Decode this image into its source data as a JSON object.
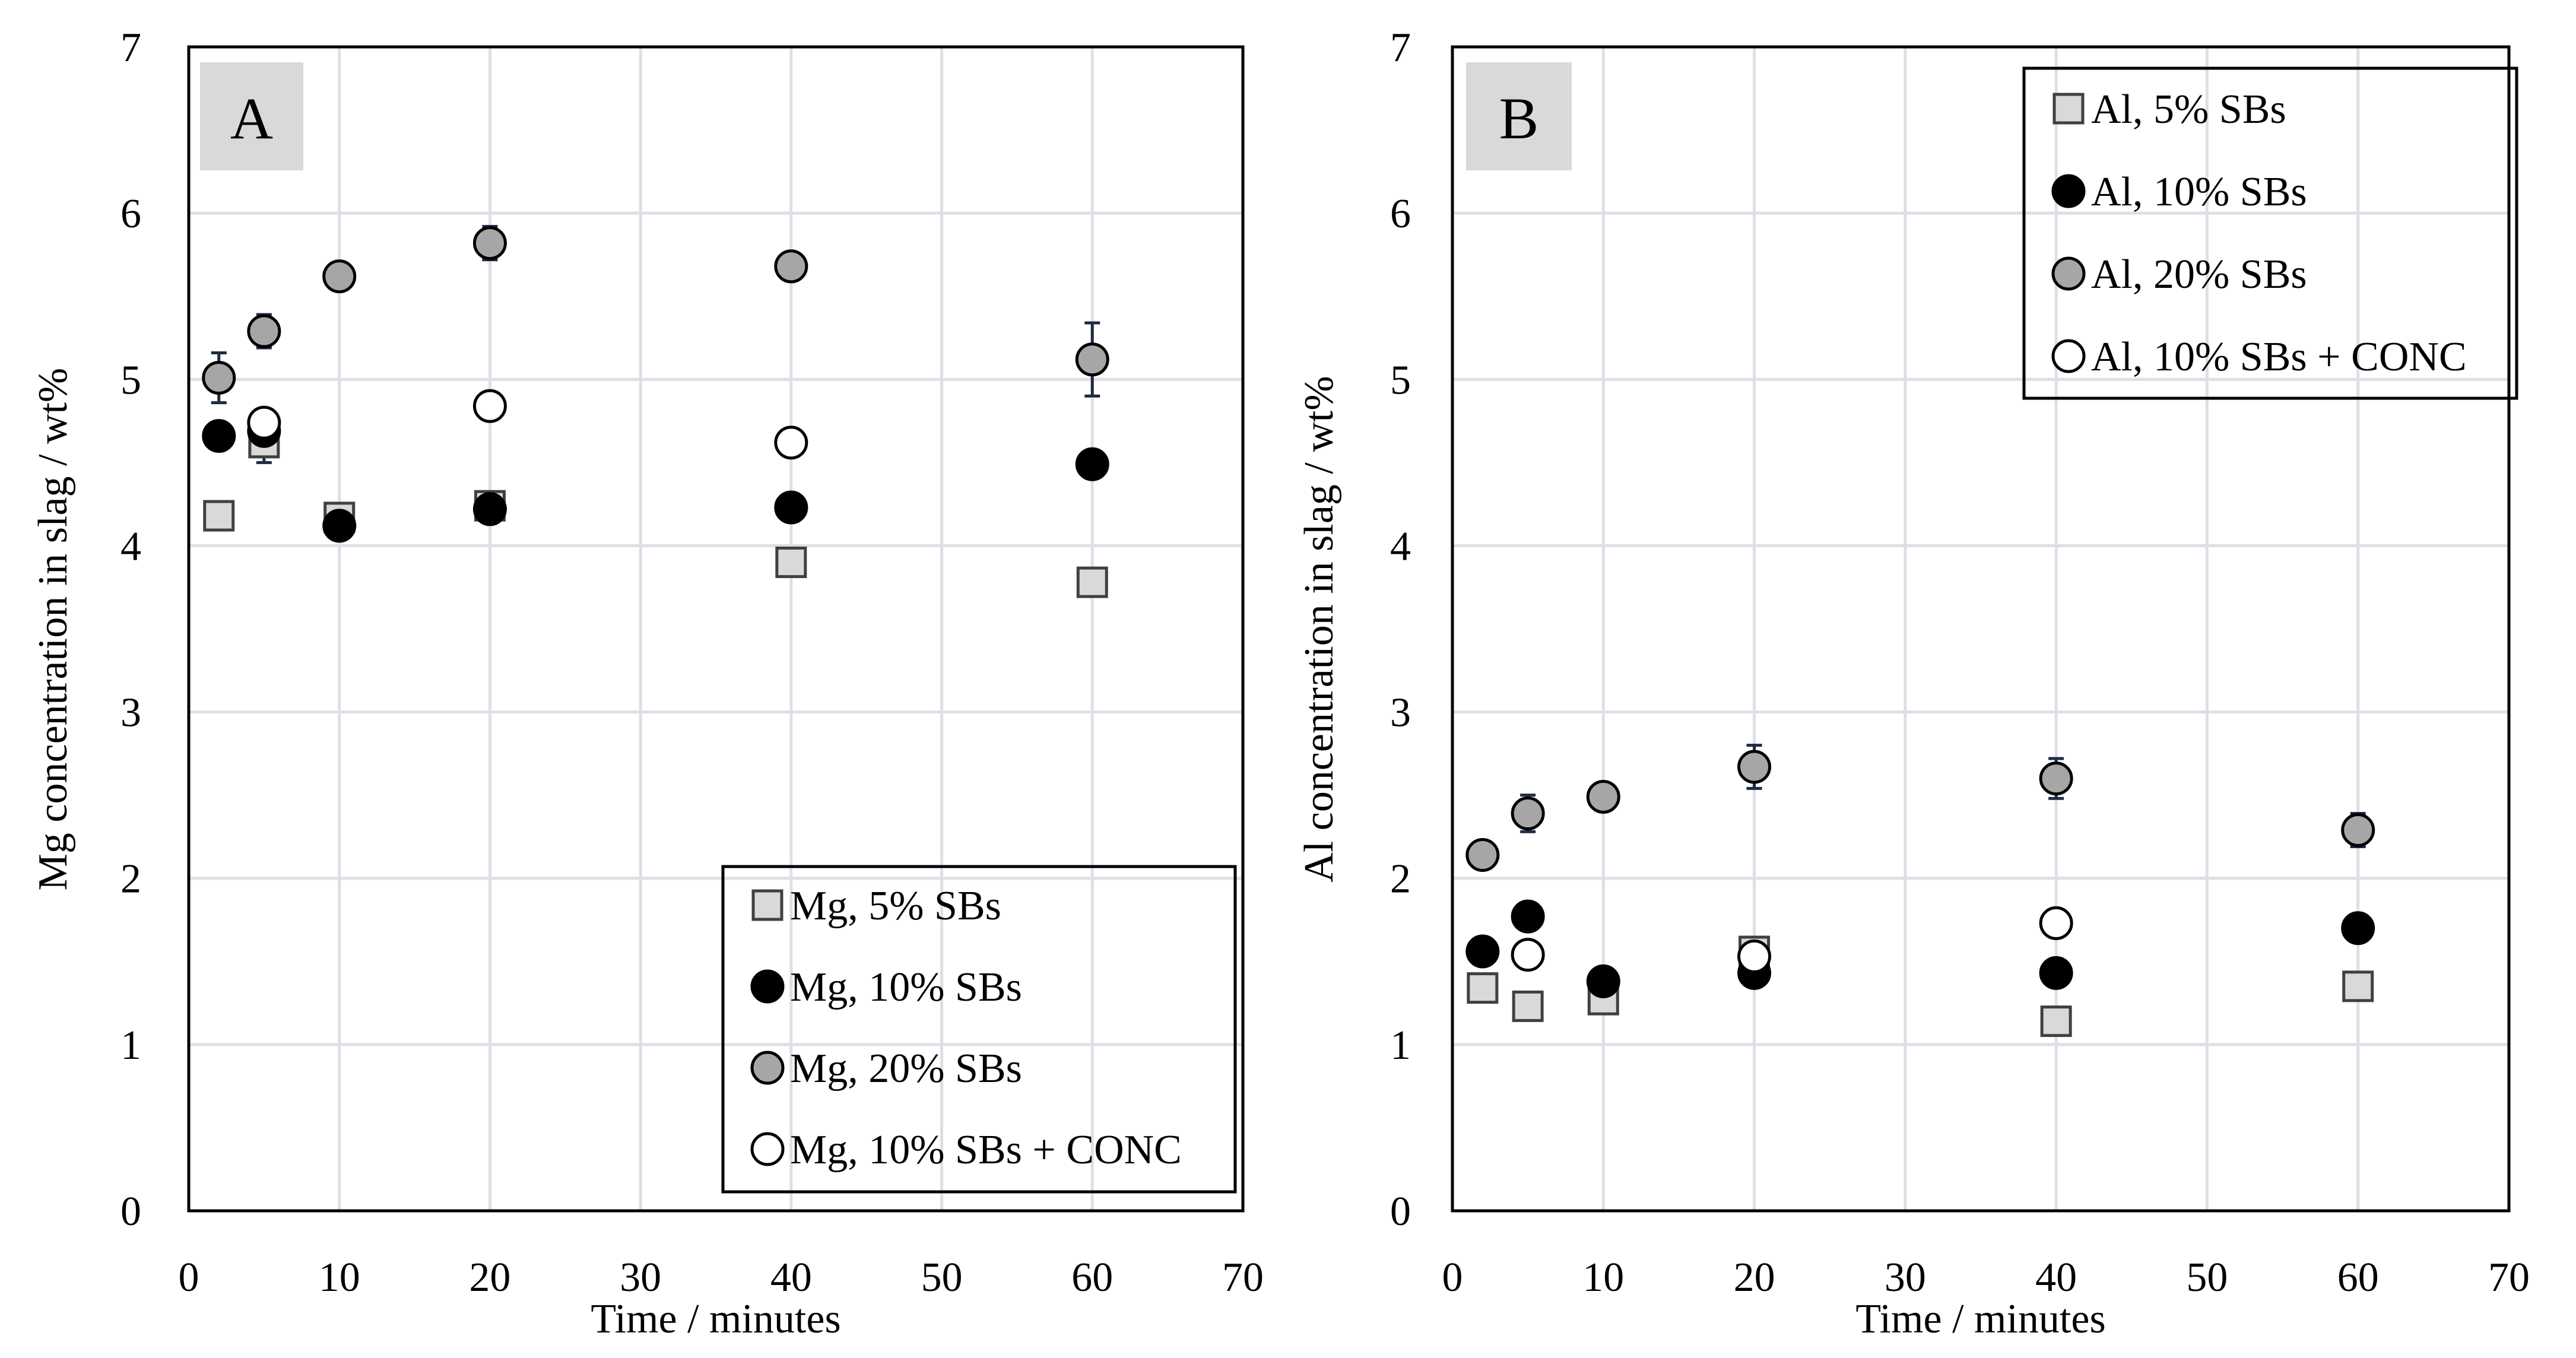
{
  "chart_data": [
    {
      "panel": "A",
      "type": "scatter",
      "xlabel": "Time / minutes",
      "ylabel": "Mg concentration in slag / wt%",
      "xlim": [
        0,
        70
      ],
      "ylim": [
        0,
        7
      ],
      "xticks": [
        "0",
        "10",
        "20",
        "30",
        "40",
        "50",
        "60",
        "70"
      ],
      "yticks": [
        "0",
        "1",
        "2",
        "3",
        "4",
        "5",
        "6",
        "7"
      ],
      "legend_position": "bottom-right",
      "series": [
        {
          "name": "Mg, 5% SBs",
          "marker": "square",
          "fill": "#d9d9d9",
          "x": [
            2,
            5,
            10,
            20,
            40,
            60
          ],
          "y": [
            4.18,
            4.62,
            4.17,
            4.24,
            3.9,
            3.78
          ],
          "err": [
            0,
            0.12,
            0.05,
            0.05,
            0,
            0
          ]
        },
        {
          "name": "Mg, 10% SBs",
          "marker": "circle",
          "fill": "#000000",
          "x": [
            2,
            5,
            10,
            20,
            40,
            60
          ],
          "y": [
            4.66,
            4.69,
            4.12,
            4.22,
            4.23,
            4.49
          ],
          "err": [
            0,
            0,
            0.06,
            0,
            0.06,
            0
          ]
        },
        {
          "name": "Mg, 20% SBs",
          "marker": "circle",
          "fill": "#a6a6a6",
          "x": [
            2,
            5,
            10,
            20,
            40,
            60
          ],
          "y": [
            5.01,
            5.29,
            5.62,
            5.82,
            5.68,
            5.12
          ],
          "err": [
            0.15,
            0.1,
            0.08,
            0.1,
            0,
            0.22
          ]
        },
        {
          "name": "Mg, 10% SBs + CONC",
          "marker": "circle",
          "fill": "#ffffff",
          "x": [
            5,
            20,
            40
          ],
          "y": [
            4.74,
            4.84,
            4.62
          ],
          "err": [
            0,
            0,
            0
          ]
        }
      ]
    },
    {
      "panel": "B",
      "type": "scatter",
      "xlabel": "Time / minutes",
      "ylabel": "Al concentration in slag / wt%",
      "xlim": [
        0,
        70
      ],
      "ylim": [
        0,
        7
      ],
      "xticks": [
        "0",
        "10",
        "20",
        "30",
        "40",
        "50",
        "60",
        "70"
      ],
      "yticks": [
        "0",
        "1",
        "2",
        "3",
        "4",
        "5",
        "6",
        "7"
      ],
      "legend_position": "top-right",
      "series": [
        {
          "name": "Al, 5% SBs",
          "marker": "square",
          "fill": "#d9d9d9",
          "x": [
            2,
            5,
            10,
            20,
            40,
            60
          ],
          "y": [
            1.34,
            1.23,
            1.27,
            1.56,
            1.14,
            1.35
          ],
          "err": [
            0,
            0,
            0,
            0,
            0,
            0.05
          ]
        },
        {
          "name": "Al, 10% SBs",
          "marker": "circle",
          "fill": "#000000",
          "x": [
            2,
            5,
            10,
            20,
            40,
            60
          ],
          "y": [
            1.56,
            1.77,
            1.38,
            1.43,
            1.43,
            1.7
          ],
          "err": [
            0.08,
            0,
            0.05,
            0,
            0,
            0
          ]
        },
        {
          "name": "Al, 20% SBs",
          "marker": "circle",
          "fill": "#a6a6a6",
          "x": [
            2,
            5,
            10,
            20,
            40,
            60
          ],
          "y": [
            2.14,
            2.39,
            2.49,
            2.67,
            2.6,
            2.29
          ],
          "err": [
            0,
            0.11,
            0,
            0.13,
            0.12,
            0.1
          ]
        },
        {
          "name": "Al, 10% SBs + CONC",
          "marker": "circle",
          "fill": "#ffffff",
          "x": [
            5,
            20,
            40
          ],
          "y": [
            1.54,
            1.53,
            1.73
          ],
          "err": [
            0,
            0,
            0
          ]
        }
      ]
    }
  ]
}
